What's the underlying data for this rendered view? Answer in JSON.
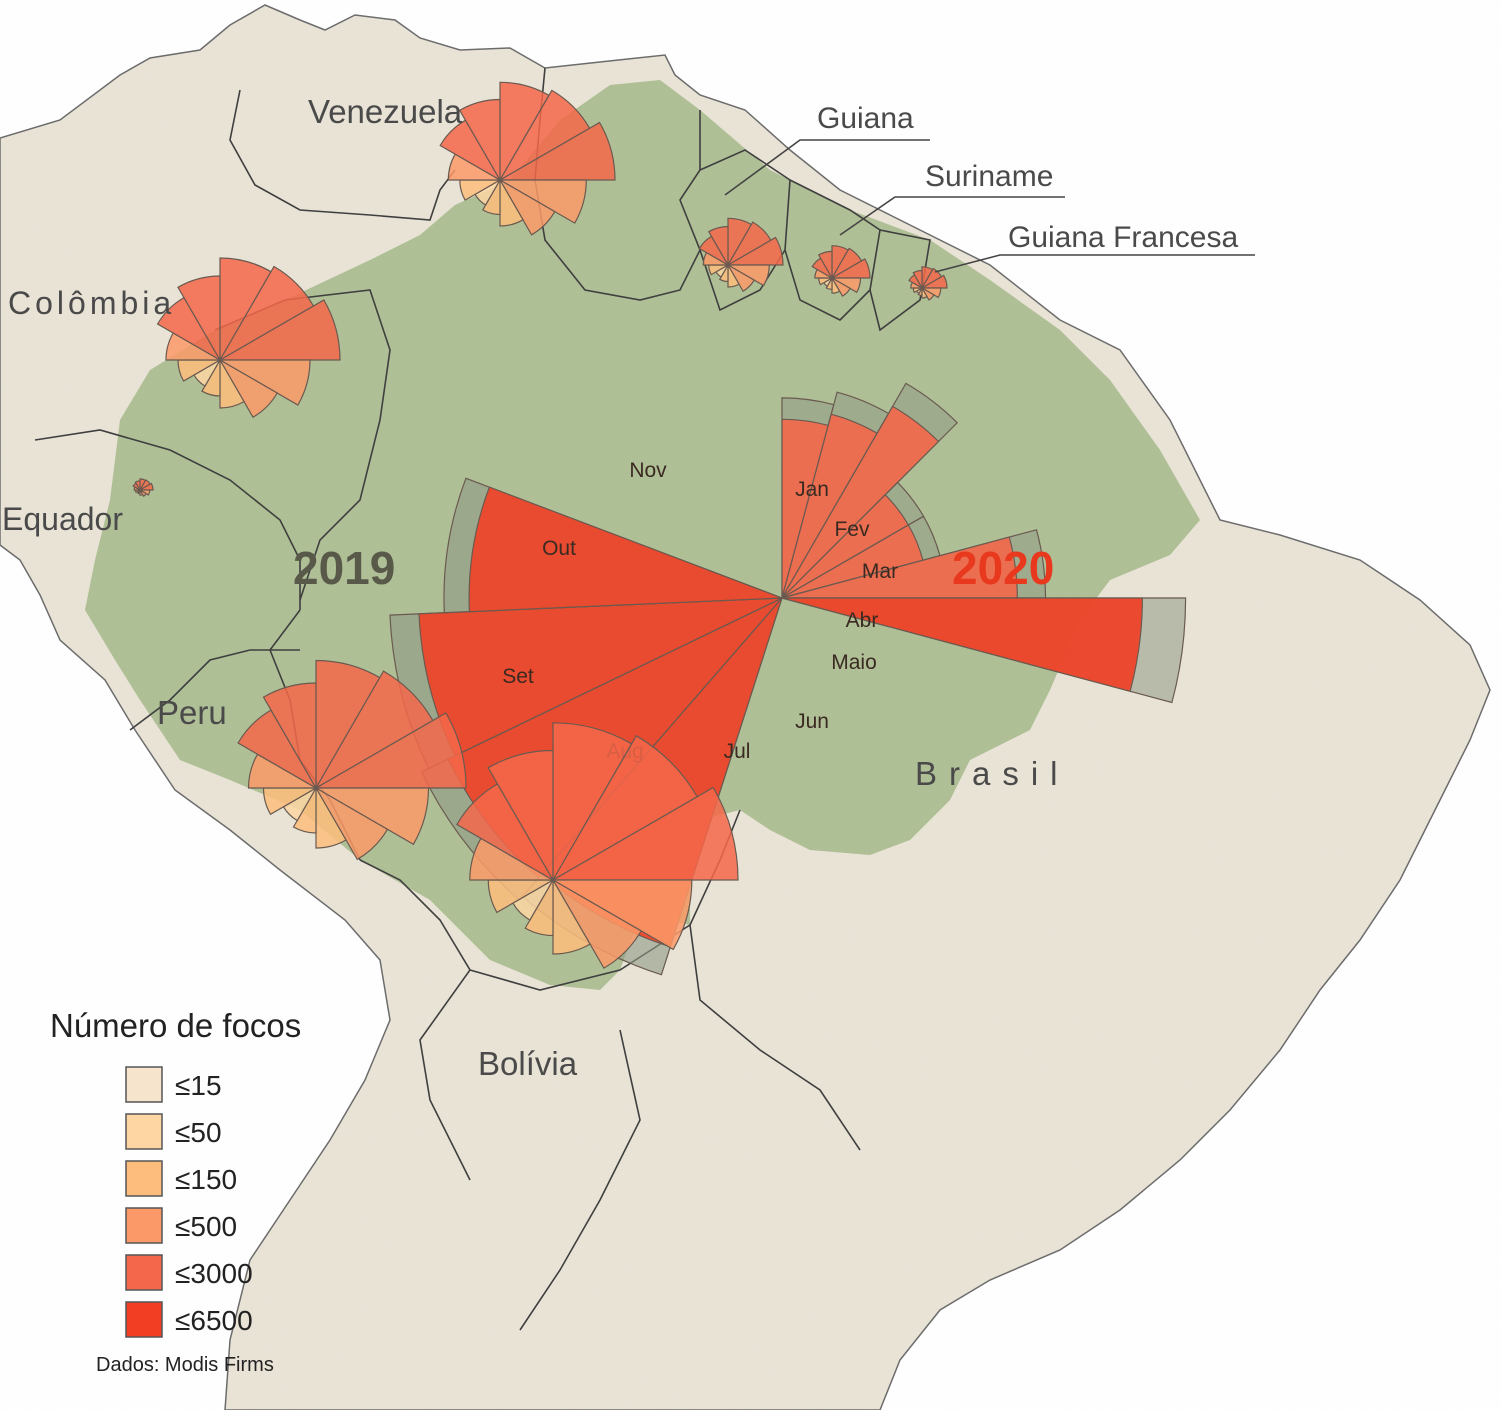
{
  "colors": {
    "ocean": "#ffffff",
    "land": "#e9e4d6",
    "amazon": "#a9bc8f",
    "border": "#3f3f3f",
    "wedge_2019_gray": "#8f9a86",
    "bin_15": "#f6e4cc",
    "bin_50": "#fdd6a3",
    "bin_150": "#fdbd7c",
    "bin_500": "#fb9a68",
    "bin_3000": "#f4674a",
    "bin_6500": "#f23e22",
    "year_2019": "#59594a",
    "year_2020": "#e8391e"
  },
  "labels": {
    "countries": [
      {
        "id": "venezuela",
        "text": "Venezuela"
      },
      {
        "id": "guiana",
        "text": "Guiana"
      },
      {
        "id": "suriname",
        "text": "Suriname"
      },
      {
        "id": "guiana-francesa",
        "text": "Guiana Francesa"
      },
      {
        "id": "colombia",
        "text": "Colômbia"
      },
      {
        "id": "equador",
        "text": "Equador"
      },
      {
        "id": "peru",
        "text": "Peru"
      },
      {
        "id": "bolivia",
        "text": "Bolívia"
      },
      {
        "id": "brasil",
        "text": "Brasil"
      }
    ],
    "year_2019": "2019",
    "year_2020": "2020"
  },
  "months": [
    "Jan",
    "Fev",
    "Mar",
    "Abr",
    "Maio",
    "Jun",
    "Jul",
    "Aug",
    "Set",
    "Out",
    "Nov"
  ],
  "legend": {
    "title": "Número de focos",
    "items": [
      {
        "label": "≤15",
        "color": "#f6e4cc"
      },
      {
        "label": "≤50",
        "color": "#fdd6a3"
      },
      {
        "label": "≤150",
        "color": "#fdbd7c"
      },
      {
        "label": "≤500",
        "color": "#fb9a68"
      },
      {
        "label": "≤3000",
        "color": "#f4674a"
      },
      {
        "label": "≤6500",
        "color": "#f23e22"
      }
    ]
  },
  "source": "Dados: Modis Firms",
  "chart_data": {
    "type": "radial-bar",
    "note_unit": "Número de focos",
    "series": [
      {
        "name": "2019",
        "months": [
          "Nov",
          "Out",
          "Set",
          "Aug"
        ]
      },
      {
        "name": "2020",
        "months": [
          "Jan",
          "Fev",
          "Mar",
          "Abr",
          "Maio",
          "Jun",
          "Jul"
        ]
      }
    ],
    "brasil": {
      "2020": [
        {
          "month": "Jan",
          "value": 1500
        },
        {
          "month": "Fev",
          "value": 1700
        },
        {
          "month": "Mar",
          "value": 2300
        },
        {
          "month": "Abr",
          "value": 1000
        },
        {
          "month": "Maio",
          "value": 1000
        },
        {
          "month": "Jun",
          "value": 2600
        },
        {
          "month": "Jul",
          "value": 6100
        }
      ],
      "2019": [
        {
          "month": "Aug",
          "value": 6300
        },
        {
          "month": "Set",
          "value": 6450
        },
        {
          "month": "Out",
          "value": 6200
        },
        {
          "month": "Nov",
          "value": 4600
        }
      ]
    }
  }
}
